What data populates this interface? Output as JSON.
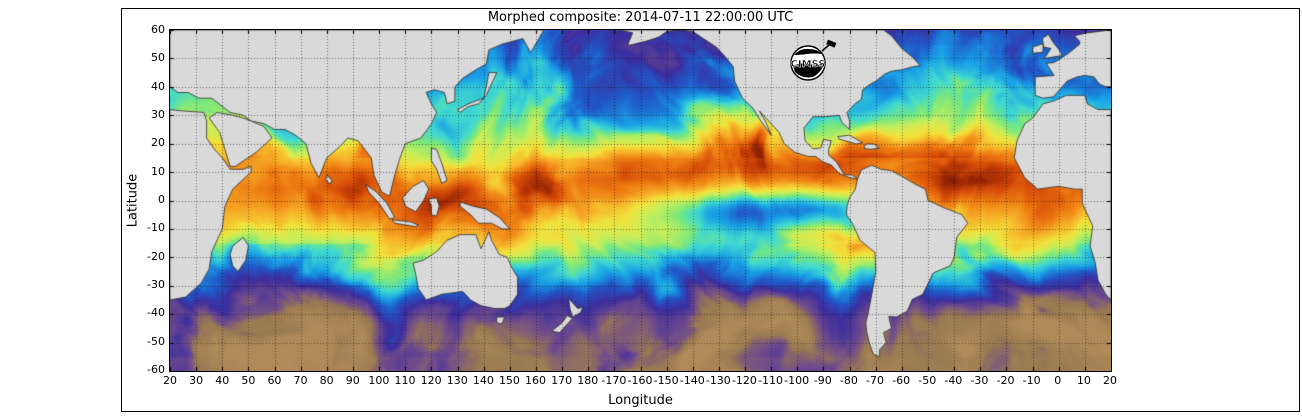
{
  "figure": {
    "title": "Morphed composite: 2014-07-11 22:00:00 UTC"
  },
  "axes": {
    "xlabel": "Longitude",
    "ylabel": "Latitude",
    "x_ticks": [
      "20",
      "30",
      "40",
      "50",
      "60",
      "70",
      "80",
      "90",
      "100",
      "110",
      "120",
      "130",
      "140",
      "150",
      "160",
      "170",
      "180",
      "-170",
      "-160",
      "-150",
      "-140",
      "-130",
      "-120",
      "-110",
      "-100",
      "-90",
      "-80",
      "-70",
      "-60",
      "-50",
      "-40",
      "-30",
      "-20",
      "-10",
      "0",
      "10",
      "20"
    ],
    "y_ticks": [
      "60",
      "50",
      "40",
      "30",
      "20",
      "10",
      "0",
      "-10",
      "-20",
      "-30",
      "-40",
      "-50",
      "-60"
    ],
    "x_range_deg": 360,
    "y_range": [
      -60,
      60
    ]
  },
  "logo": {
    "text": "CIMSS"
  },
  "map": {
    "land_color": "#d9d9d9",
    "coast_color": "#2a2a2a",
    "grid_color": "rgba(0,0,0,0.5)",
    "frame_color": "#000000",
    "palette": [
      {
        "t": 0.0,
        "color": "#b08a58"
      },
      {
        "t": 0.1,
        "color": "#9a7a52"
      },
      {
        "t": 0.18,
        "color": "#6e4a8c"
      },
      {
        "t": 0.26,
        "color": "#3c2e9e"
      },
      {
        "t": 0.34,
        "color": "#2058c8"
      },
      {
        "t": 0.42,
        "color": "#19a0e6"
      },
      {
        "t": 0.5,
        "color": "#40d8d0"
      },
      {
        "t": 0.56,
        "color": "#7ce87c"
      },
      {
        "t": 0.62,
        "color": "#c8ee5a"
      },
      {
        "t": 0.68,
        "color": "#f2e23c"
      },
      {
        "t": 0.75,
        "color": "#f6b22a"
      },
      {
        "t": 0.82,
        "color": "#ee7d12"
      },
      {
        "t": 0.89,
        "color": "#d44a08"
      },
      {
        "t": 0.95,
        "color": "#9a2604"
      },
      {
        "t": 1.0,
        "color": "#5e1402"
      }
    ]
  }
}
